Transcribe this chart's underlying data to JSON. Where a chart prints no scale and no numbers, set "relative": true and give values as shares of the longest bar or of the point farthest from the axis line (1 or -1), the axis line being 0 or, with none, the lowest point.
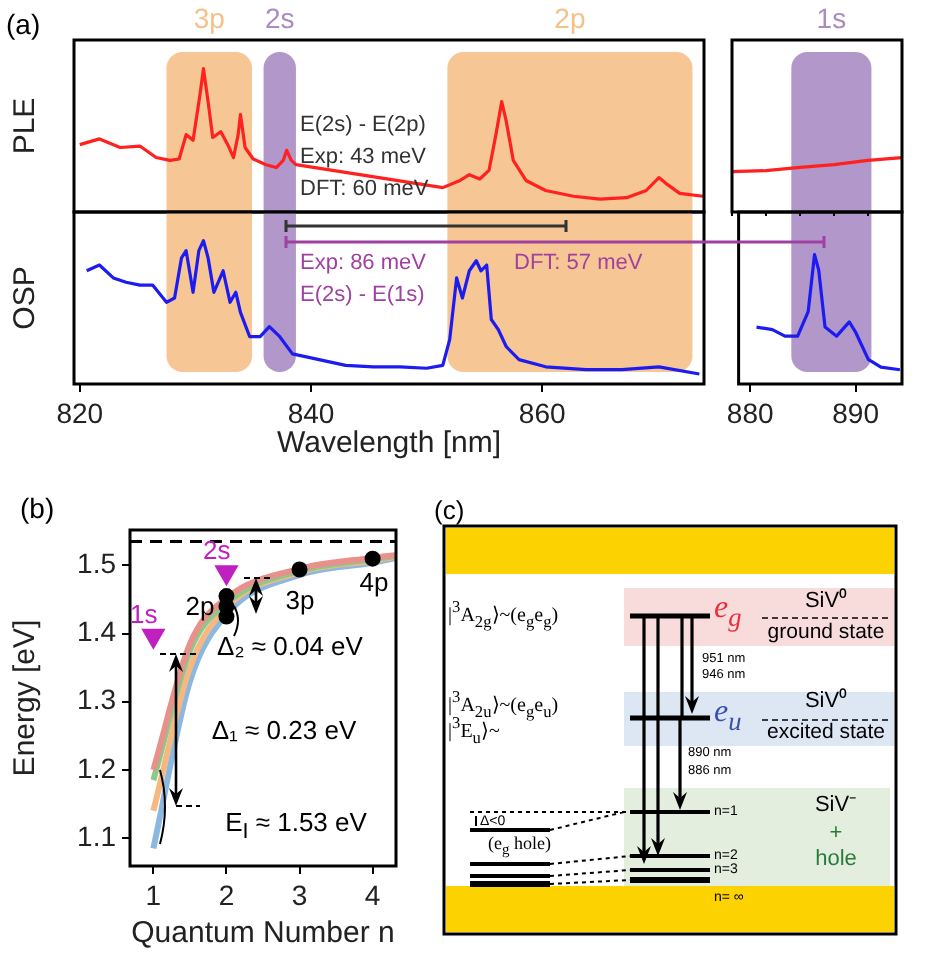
{
  "chart_data": [
    {
      "type": "line",
      "ylabel": "PLE",
      "relative": true,
      "tick_labels": false,
      "xlim": [
        819.5,
        874
      ],
      "series": [
        {
          "color": "#ff2020",
          "x": [
            820.0,
            821.7,
            823.5,
            825.2,
            826.6,
            827.8,
            828.6,
            829.2,
            829.8,
            830.4,
            830.7,
            831.1,
            831.5,
            832.2,
            832.8,
            833.3,
            833.7,
            833.9,
            834.3,
            835.0,
            836.1,
            837.0,
            837.6,
            837.9,
            838.3,
            838.7,
            851.4,
            852.9,
            853.7,
            854.6,
            855.4,
            856.0,
            856.5,
            856.9,
            857.5,
            858.6,
            860.3,
            862.7,
            865.0,
            867.3,
            869.0,
            870.1,
            870.7,
            871.9,
            873.9
          ],
          "values": [
            0.47,
            0.51,
            0.45,
            0.46,
            0.38,
            0.36,
            0.37,
            0.54,
            0.5,
            0.82,
            1.0,
            0.77,
            0.52,
            0.56,
            0.47,
            0.38,
            0.54,
            0.68,
            0.45,
            0.37,
            0.33,
            0.31,
            0.36,
            0.43,
            0.36,
            0.33,
            0.17,
            0.22,
            0.26,
            0.23,
            0.29,
            0.54,
            0.77,
            0.63,
            0.36,
            0.22,
            0.15,
            0.11,
            0.09,
            0.1,
            0.15,
            0.24,
            0.2,
            0.13,
            0.11
          ]
        }
      ],
      "bands": [
        {
          "axis": "x",
          "from": 827.5,
          "to": 834.9,
          "label": "3p",
          "color": "#f5c08a"
        },
        {
          "axis": "x",
          "from": 835.9,
          "to": 838.7,
          "label": "2s",
          "color": "#a98cc4"
        },
        {
          "axis": "x",
          "from": 851.8,
          "to": 873.0,
          "label": "2p",
          "color": "#f5c08a"
        }
      ],
      "annotations": [
        "(a)",
        "E(2s) - E(2p)",
        "Exp: 43 meV",
        "DFT: 60 meV"
      ]
    },
    {
      "type": "line",
      "relative": true,
      "tick_labels": false,
      "categories": [
        null,
        null,
        null,
        null,
        null,
        null
      ],
      "series": [
        {
          "color": "#ff2020",
          "values": [
            0.74,
            0.76,
            0.82,
            0.87,
            0.95,
            1.0
          ]
        }
      ]
    },
    {
      "type": "line",
      "ylabel": "OSP",
      "xlabel": "Wavelength [nm]",
      "relative": true,
      "tick_labels": "x",
      "xlim": [
        819.5,
        874
      ],
      "xticks": [
        820,
        840,
        860
      ],
      "series": [
        {
          "color": "#1c1cf0",
          "x": [
            820.6,
            821.7,
            822.9,
            824.0,
            825.2,
            826.3,
            827.5,
            828.2,
            828.8,
            829.2,
            829.8,
            830.3,
            830.7,
            831.1,
            831.6,
            832.4,
            833.0,
            833.5,
            833.9,
            834.7,
            835.6,
            836.4,
            837.3,
            838.4,
            840.7,
            843.0,
            845.4,
            847.7,
            850.0,
            851.4,
            852.0,
            852.6,
            853.1,
            853.7,
            854.3,
            854.7,
            855.2,
            855.6,
            856.2,
            856.9,
            858.0,
            860.3,
            863.8,
            866.9,
            870.1,
            873.6
          ],
          "values": [
            0.79,
            0.83,
            0.74,
            0.71,
            0.69,
            0.69,
            0.57,
            0.6,
            0.88,
            0.93,
            0.64,
            0.93,
            1.0,
            0.88,
            0.64,
            0.79,
            0.57,
            0.64,
            0.5,
            0.33,
            0.33,
            0.4,
            0.33,
            0.21,
            0.17,
            0.13,
            0.12,
            0.12,
            0.11,
            0.13,
            0.31,
            0.74,
            0.6,
            0.79,
            0.86,
            0.79,
            0.83,
            0.45,
            0.38,
            0.26,
            0.17,
            0.12,
            0.1,
            0.1,
            0.12,
            0.07
          ]
        }
      ],
      "bands": [
        {
          "axis": "x",
          "from": 827.5,
          "to": 834.9,
          "color": "#f5c08a"
        },
        {
          "axis": "x",
          "from": 835.9,
          "to": 838.7,
          "color": "#a98cc4"
        },
        {
          "axis": "x",
          "from": 851.8,
          "to": 873.0,
          "color": "#f5c08a"
        }
      ],
      "annotations": [
        "Exp: 86 meV",
        "E(2s) - E(1s)",
        "DFT: 57 meV"
      ]
    },
    {
      "type": "line",
      "relative": true,
      "tick_labels": "x",
      "xlim": [
        878.9,
        894.4
      ],
      "xticks": [
        880,
        890
      ],
      "series": [
        {
          "color": "#1c1cf0",
          "x": [
            880.6,
            882.1,
            883.3,
            884.5,
            885.5,
            886.1,
            886.5,
            887.1,
            888.2,
            889.4,
            890.0,
            891.2,
            892.4,
            894.2
          ],
          "values": [
            0.44,
            0.42,
            0.37,
            0.37,
            0.56,
            1.0,
            0.88,
            0.44,
            0.37,
            0.48,
            0.4,
            0.19,
            0.13,
            0.11
          ]
        }
      ],
      "bands": [
        {
          "axis": "x",
          "from": 883.9,
          "to": 891.5,
          "label": "1s",
          "color": "#a98cc4"
        }
      ]
    },
    {
      "type": "line",
      "xlabel": "Quantum Number n",
      "ylabel": "Energy [eV]",
      "xlim": [
        0.68,
        4.32
      ],
      "ylim": [
        1.059,
        1.552
      ],
      "xticks": [
        1,
        2,
        3,
        4
      ],
      "yticks": [
        1.1,
        1.2,
        1.3,
        1.4,
        1.5
      ],
      "series": [
        {
          "color": "#e8908a",
          "x": [
            1,
            1.5,
            2,
            3,
            4,
            4.32
          ],
          "values": [
            1.2,
            1.385,
            1.452,
            1.495,
            1.511,
            1.515
          ]
        },
        {
          "color": "#8cc88c",
          "x": [
            1,
            1.5,
            2,
            3,
            4,
            4.32
          ],
          "values": [
            1.185,
            1.375,
            1.445,
            1.492,
            1.509,
            1.514
          ]
        },
        {
          "color": "#f5b880",
          "x": [
            1,
            1.5,
            2,
            3,
            4,
            4.32
          ],
          "values": [
            1.14,
            1.35,
            1.438,
            1.49,
            1.507,
            1.513
          ]
        },
        {
          "color": "#8ab8e0",
          "x": [
            1,
            1.5,
            2,
            3,
            4,
            4.32
          ],
          "values": [
            1.085,
            1.33,
            1.428,
            1.486,
            1.504,
            1.511
          ]
        },
        {
          "type": "scatter",
          "marker": "circle",
          "color": "#000000",
          "x": [
            2,
            2,
            2,
            3,
            4
          ],
          "values": [
            1.455,
            1.44,
            1.425,
            1.494,
            1.51
          ]
        },
        {
          "type": "scatter",
          "marker": "triangle",
          "name": "1s",
          "color": "#c020c0",
          "x": [
            1
          ],
          "values": [
            1.397
          ]
        },
        {
          "type": "scatter",
          "marker": "triangle",
          "name": "2s",
          "color": "#c020c0",
          "x": [
            2
          ],
          "values": [
            1.49
          ]
        }
      ],
      "ref_lines": [
        {
          "axis": "y",
          "value": 1.535,
          "color": "#000000",
          "line_style": "dashed"
        }
      ],
      "annotations": [
        "(b)",
        "2p",
        "3p",
        "4p",
        "Δ₂ ≈ 0.04 eV",
        "Δ₁ ≈ 0.23 eV",
        "E$_{I}$ ≈ 1.53 eV"
      ]
    },
    {
      "type": "other",
      "annotations": [
        "(c)",
        "|$^{3}$A$_{2g}$⟩~(e$_{g}$e$_{g}$)",
        "|$^{3}$A$_{2u}$⟩~(e$_{g}$e$_{u}$)",
        "|$^{3}$E$_{u}$⟩~",
        "e$_{g}$",
        "e$_{u}$",
        "SiV⁰",
        "ground state",
        "SiV⁰",
        "excited state",
        "951 nm",
        "946 nm",
        "890 nm",
        "886 nm",
        "Δ<0",
        "(e$_{g}$ hole)",
        "n=1",
        "n=2",
        "n=3",
        "n= ∞",
        "SiV⁻",
        "+",
        "hole"
      ]
    }
  ]
}
